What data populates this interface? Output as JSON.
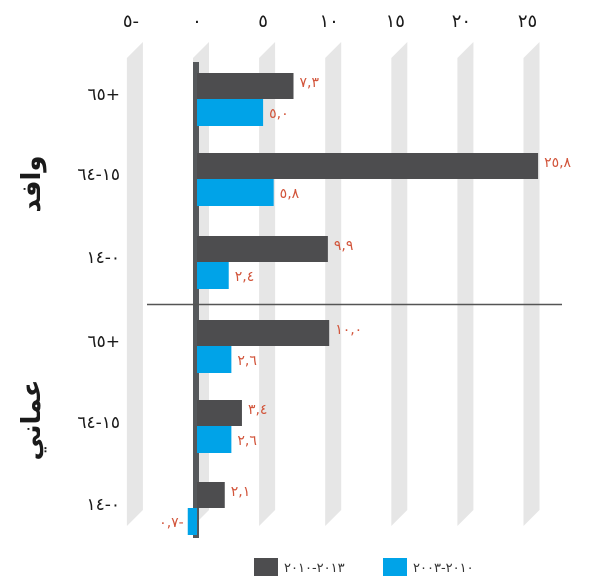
{
  "chart_data": {
    "type": "bar",
    "orientation": "horizontal",
    "xlim": [
      -5,
      25
    ],
    "x_ticks": [
      {
        "value": -5,
        "label": "٥-"
      },
      {
        "value": 0,
        "label": "٠"
      },
      {
        "value": 5,
        "label": "٥"
      },
      {
        "value": 10,
        "label": "١٠"
      },
      {
        "value": 15,
        "label": "١٥"
      },
      {
        "value": 20,
        "label": "٢٠"
      },
      {
        "value": 25,
        "label": "٢٥"
      }
    ],
    "groups": [
      {
        "label": "وافد",
        "categories": [
          "65+",
          "15-64",
          "0-14"
        ],
        "category_labels": [
          "٦٥+",
          "١٥-٦٤",
          "٠-١٤"
        ]
      },
      {
        "label": "عماني",
        "categories": [
          "65+",
          "15-64",
          "0-14"
        ],
        "category_labels": [
          "٦٥+",
          "١٥-٦٤",
          "٠-١٤"
        ]
      }
    ],
    "series": [
      {
        "name": "٢٠١٣-٢٠١٠",
        "color": "#4d4d4f",
        "values": [
          7.3,
          25.8,
          9.9,
          10.0,
          3.4,
          2.1
        ],
        "labels": [
          "٧,٣",
          "٢٥,٨",
          "٩,٩",
          "١٠,٠",
          "٣,٤",
          "٢,١"
        ]
      },
      {
        "name": "٢٠١٠-٢٠٠٣",
        "color": "#00a3e8",
        "values": [
          5.0,
          5.8,
          2.4,
          2.6,
          2.6,
          -0.7
        ],
        "labels": [
          "٥,٠",
          "٥,٨",
          "٢,٤",
          "٢,٦",
          "٢,٦",
          "٠,٧-"
        ]
      }
    ],
    "legend": {
      "position": "bottom"
    },
    "label_color": "#d2543a"
  }
}
